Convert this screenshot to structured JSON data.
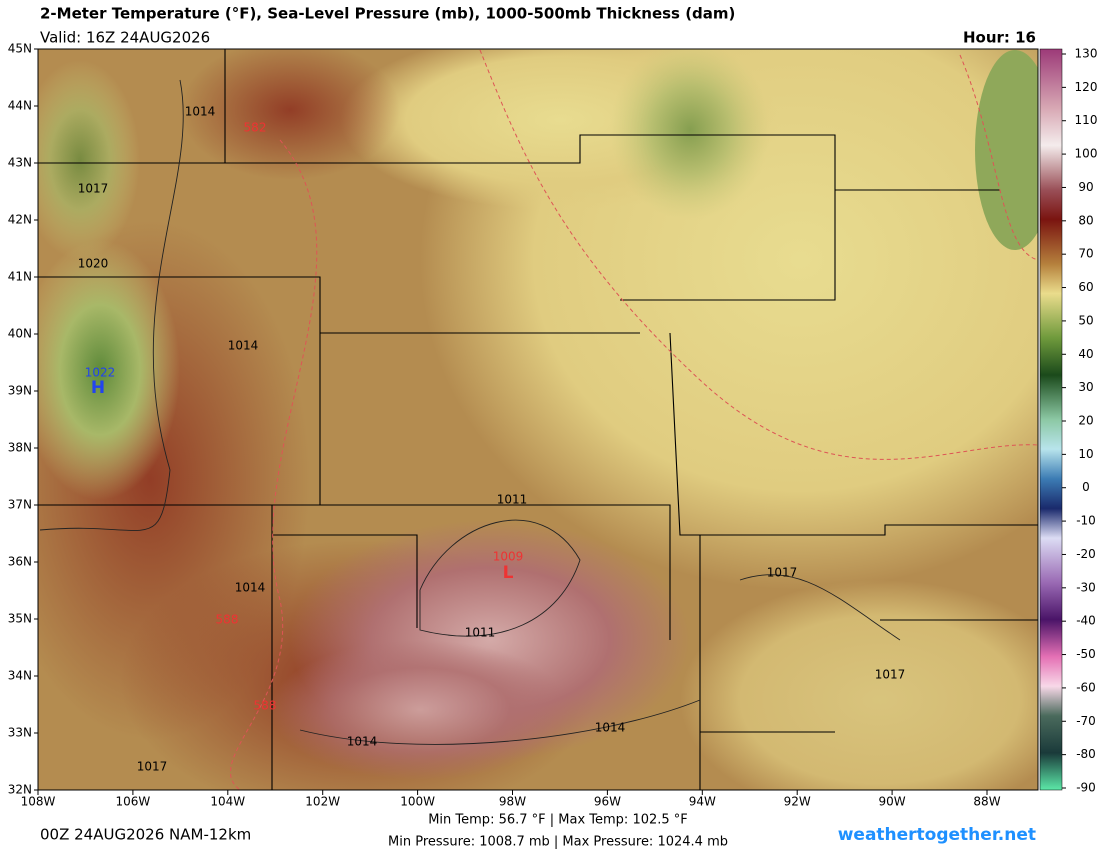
{
  "header": {
    "title": "2-Meter Temperature (°F), Sea-Level Pressure (mb), 1000-500mb Thickness (dam)",
    "valid": "Valid: 16Z 24AUG2026",
    "hour": "Hour: 16"
  },
  "map": {
    "lat_labels": [
      "45N",
      "44N",
      "43N",
      "42N",
      "41N",
      "40N",
      "39N",
      "38N",
      "37N",
      "36N",
      "35N",
      "34N",
      "33N",
      "32N"
    ],
    "lon_labels": [
      "108W",
      "106W",
      "104W",
      "102W",
      "100W",
      "98W",
      "96W",
      "94W",
      "92W",
      "90W",
      "88W"
    ],
    "contour_labels": [
      "1014",
      "582",
      "1017",
      "1020",
      "1014",
      "1022",
      "H",
      "1011",
      "1009",
      "L",
      "1017",
      "1014",
      "588",
      "1011",
      "1017",
      "588",
      "1014",
      "1014",
      "1017"
    ]
  },
  "colorbar": {
    "ticks": [
      "130",
      "120",
      "110",
      "100",
      "90",
      "80",
      "70",
      "60",
      "50",
      "40",
      "30",
      "20",
      "10",
      "0",
      "-10",
      "-20",
      "-30",
      "-40",
      "-50",
      "-60",
      "-70",
      "-80",
      "-90"
    ]
  },
  "footer": {
    "run": "00Z 24AUG2026 NAM-12km",
    "temps": "Min Temp:  56.7 °F | Max Temp: 102.5 °F",
    "pressures": "Min Pressure: 1008.7 mb | Max Pressure: 1024.4 mb",
    "site": "weathertogether.net"
  }
}
